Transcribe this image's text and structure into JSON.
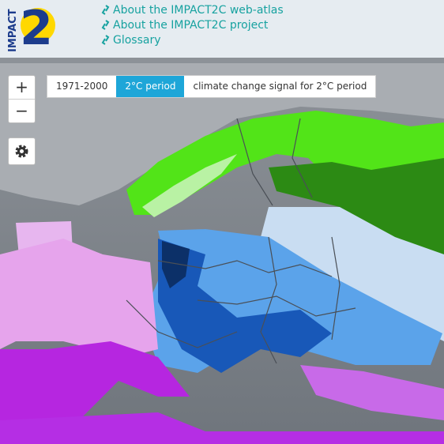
{
  "header": {
    "logo": {
      "text": "IMPACT",
      "number": "2"
    },
    "links": [
      "About the IMPACT2C web-atlas",
      "About the IMPACT2C project",
      "Glossary"
    ]
  },
  "controls": {
    "zoom_in": "+",
    "zoom_out": "−"
  },
  "period_tabs": {
    "tabs": [
      "1971-2000",
      "2°C period",
      "climate change signal for 2°C period"
    ],
    "active": 1
  }
}
